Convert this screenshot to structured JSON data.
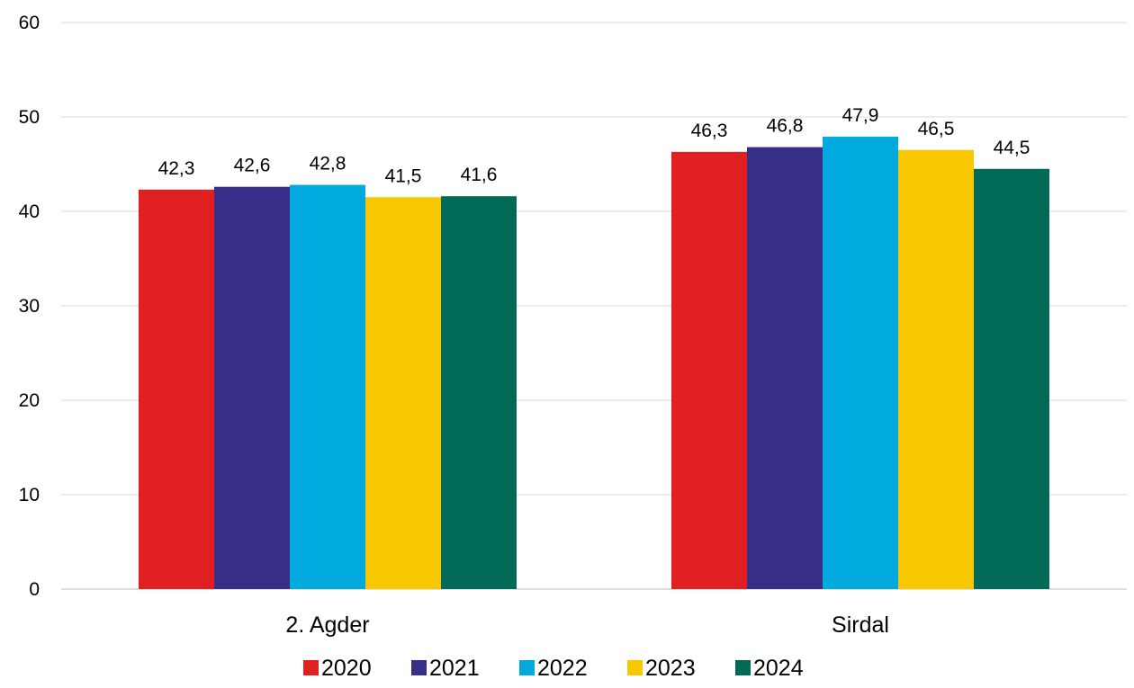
{
  "chart_data": {
    "type": "bar",
    "categories": [
      "2. Agder",
      "Sirdal"
    ],
    "series": [
      {
        "name": "2020",
        "values": [
          42.3,
          46.3
        ],
        "labels": [
          "42,3",
          "46,3"
        ],
        "color": "#e02020"
      },
      {
        "name": "2021",
        "values": [
          42.6,
          46.8
        ],
        "labels": [
          "42,6",
          "46,8"
        ],
        "color": "#372e87"
      },
      {
        "name": "2022",
        "values": [
          42.8,
          47.9
        ],
        "labels": [
          "42,8",
          "47,9"
        ],
        "color": "#00a9de"
      },
      {
        "name": "2023",
        "values": [
          41.5,
          46.5
        ],
        "labels": [
          "41,5",
          "46,5"
        ],
        "color": "#f8c700"
      },
      {
        "name": "2024",
        "values": [
          41.6,
          44.5
        ],
        "labels": [
          "41,6",
          "44,5"
        ],
        "color": "#006a57"
      }
    ],
    "ylim": [
      0,
      60
    ],
    "yticks": [
      0,
      10,
      20,
      30,
      40,
      50,
      60
    ],
    "grid": true,
    "legend_position": "bottom",
    "title": "",
    "xlabel": "",
    "ylabel": ""
  }
}
